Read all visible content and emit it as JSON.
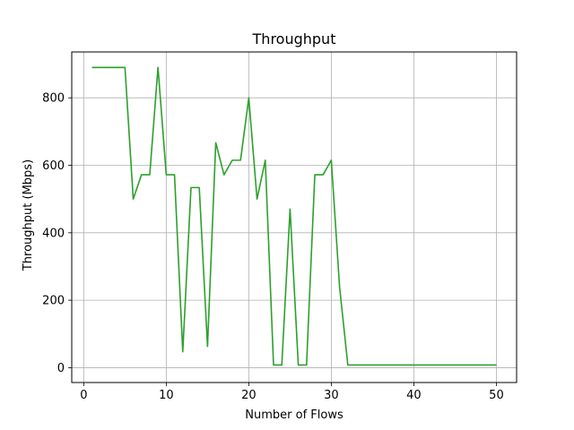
{
  "chart_data": {
    "type": "line",
    "title": "Throughput",
    "xlabel": "Number of Flows",
    "ylabel": "Throughput (Mbps)",
    "xlim": [
      -1.45,
      52.45
    ],
    "ylim": [
      -44,
      936
    ],
    "xticks": [
      0,
      10,
      20,
      30,
      40,
      50
    ],
    "yticks": [
      0,
      200,
      400,
      600,
      800
    ],
    "grid": true,
    "legend": "none",
    "series": [
      {
        "color": "#2ca02c",
        "x": [
          1,
          2,
          3,
          4,
          5,
          6,
          7,
          8,
          9,
          10,
          11,
          12,
          13,
          14,
          15,
          16,
          17,
          18,
          19,
          20,
          21,
          22,
          23,
          24,
          25,
          26,
          27,
          28,
          29,
          30,
          31,
          32,
          33,
          34,
          35,
          36,
          37,
          38,
          39,
          40,
          41,
          42,
          43,
          44,
          45,
          46,
          47,
          48,
          49,
          50
        ],
        "values": [
          890,
          890,
          890,
          890,
          890,
          500,
          572,
          572,
          890,
          572,
          572,
          47,
          534,
          534,
          63,
          667,
          572,
          615,
          615,
          800,
          500,
          615,
          8,
          8,
          470,
          8,
          8,
          572,
          572,
          615,
          240,
          8,
          8,
          8,
          8,
          8,
          8,
          8,
          8,
          8,
          8,
          8,
          8,
          8,
          8,
          8,
          8,
          8,
          8,
          8
        ]
      }
    ]
  }
}
